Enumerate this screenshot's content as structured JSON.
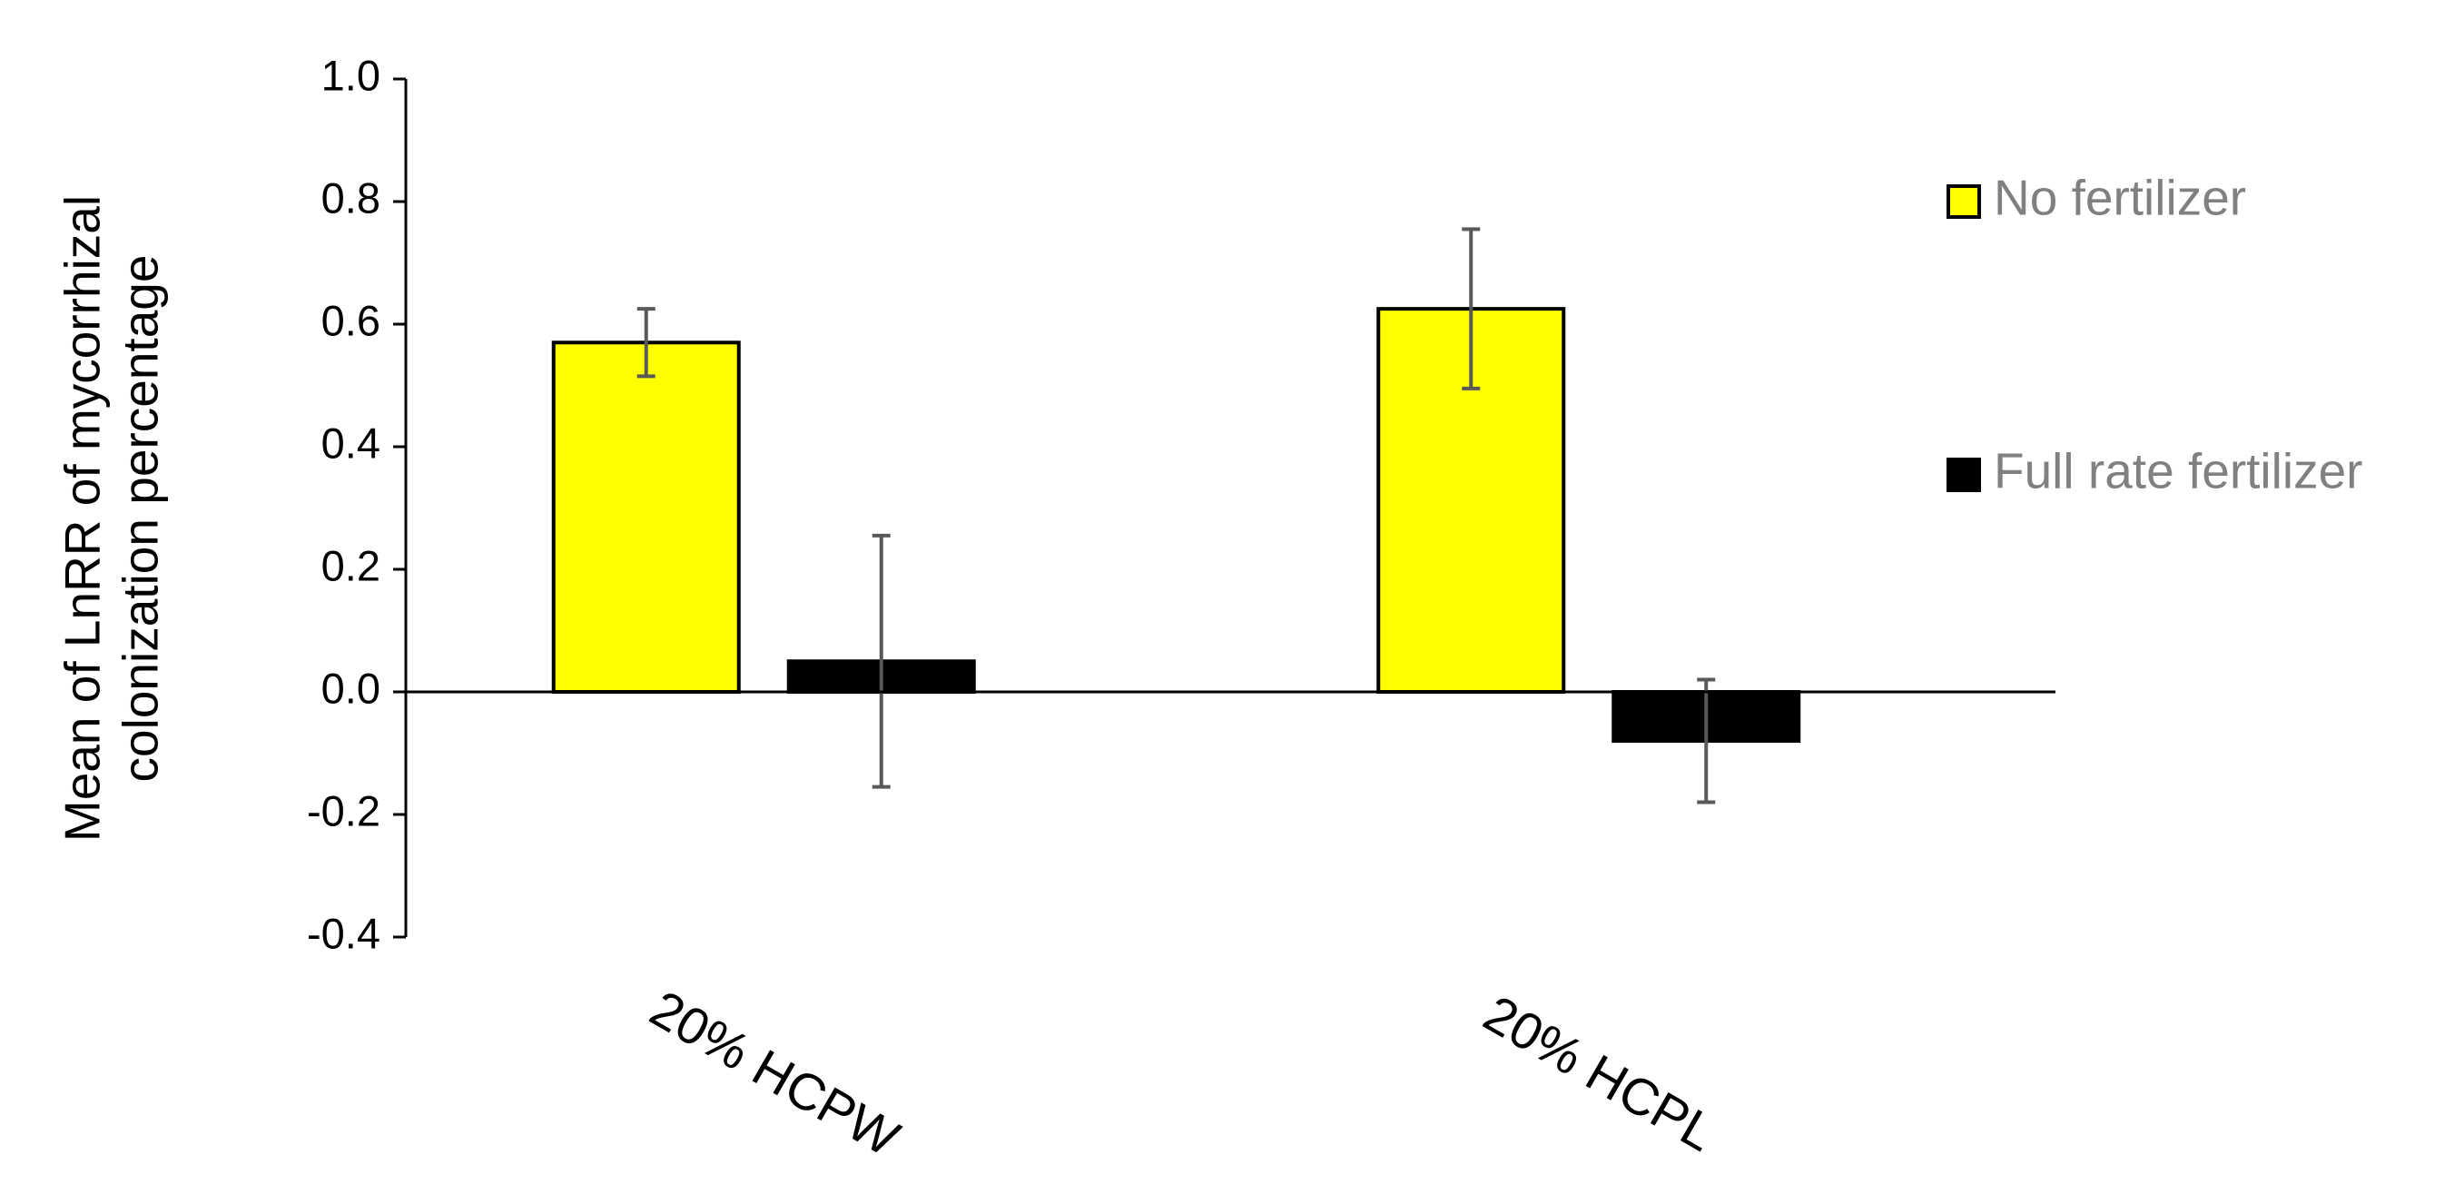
{
  "chart_data": {
    "type": "bar",
    "y_label": [
      "Mean of LnRR of mycorrhizal",
      "colonization percentage"
    ],
    "categories": [
      "20% HCPW",
      "20% HCPL"
    ],
    "series": [
      {
        "name": "No fertilizer",
        "color": "#ffff00",
        "values": [
          0.57,
          0.625
        ],
        "errors": [
          0.055,
          0.13
        ]
      },
      {
        "name": "Full rate fertilizer",
        "color": "#000000",
        "values": [
          0.05,
          -0.08
        ],
        "errors": [
          0.205,
          0.1
        ]
      }
    ],
    "ylim": [
      -0.4,
      1.0
    ],
    "yticks": [
      -0.4,
      -0.2,
      {
        "value": 0,
        "label": "0.0"
      },
      0.2,
      0.4,
      0.6,
      0.8,
      {
        "value": 1,
        "label": "1.0"
      }
    ],
    "legend": "right"
  }
}
